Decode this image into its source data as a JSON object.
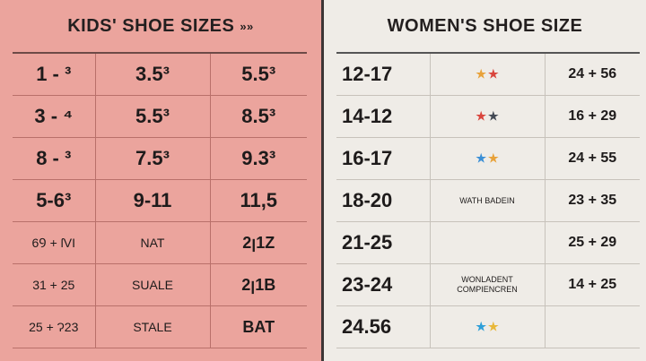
{
  "kids": {
    "title": "KIDS' SHOE  SIZES",
    "title_arrows": "»»",
    "rows": [
      [
        "1 - ³",
        "3.5³",
        "5.5³"
      ],
      [
        "3 - ⁴",
        "5.5³",
        "8.5³"
      ],
      [
        "8 - ³",
        "7.5³",
        "9.3³"
      ],
      [
        "5-6³",
        "9-11",
        "11,5"
      ],
      [
        "6Ꝯ + ſVI",
        "NAT",
        "2ꞁ1Z"
      ],
      [
        "31 + 25",
        "SUALE",
        "2ꞁ1B"
      ],
      [
        "25 + Ɂ23",
        "STALE",
        "BAT"
      ]
    ]
  },
  "women": {
    "title": "WOMEN'S SHOE SIZE",
    "rows": [
      {
        "range": "12-17",
        "stars": [
          "#e8a23a",
          "#d9463e"
        ],
        "note": "",
        "size": "24 + 56"
      },
      {
        "range": "14-12",
        "stars": [
          "#d9463e",
          "#444a55"
        ],
        "note": "",
        "size": "16 + 29"
      },
      {
        "range": "16-17",
        "stars": [
          "#3b8fd6",
          "#e8a23a"
        ],
        "note": "",
        "size": "24 + 55"
      },
      {
        "range": "18-20",
        "stars": [],
        "note": "WATH BADEIN",
        "size": "23 + 35"
      },
      {
        "range": "21-25",
        "stars": [],
        "note": "",
        "size": "25 + 29"
      },
      {
        "range": "23-24",
        "stars": [],
        "note": "WONLADENT COMPIENCREN",
        "size": "14 + 25"
      },
      {
        "range": "24.56",
        "stars": [
          "#2f9fd8",
          "#e8b83a"
        ],
        "note": "",
        "size": ""
      }
    ]
  }
}
